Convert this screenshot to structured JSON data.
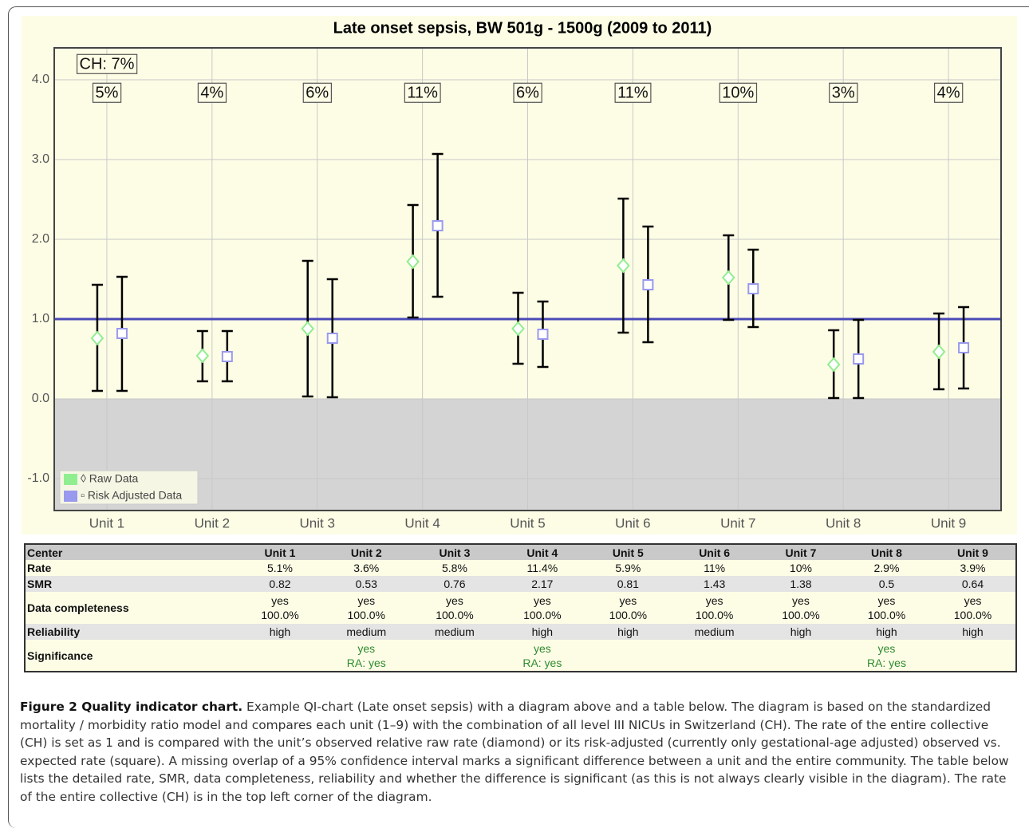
{
  "chart_data": {
    "type": "errorbar",
    "title": "Late onset sepsis, BW 501g - 1500g (2009 to 2011)",
    "categories": [
      "Unit 1",
      "Unit 2",
      "Unit 3",
      "Unit 4",
      "Unit 5",
      "Unit 6",
      "Unit 7",
      "Unit 8",
      "Unit 9"
    ],
    "series": [
      {
        "name": "◊ Raw Data",
        "color": "#90ee90",
        "marker": "diamond",
        "values": [
          0.76,
          0.54,
          0.88,
          1.72,
          0.88,
          1.67,
          1.52,
          0.43,
          0.59
        ],
        "lower": [
          0.1,
          0.22,
          0.03,
          1.02,
          0.44,
          0.83,
          0.99,
          0.01,
          0.12
        ],
        "upper": [
          1.43,
          0.85,
          1.73,
          2.43,
          1.33,
          2.51,
          2.05,
          0.86,
          1.07
        ]
      },
      {
        "name": "▫ Risk Adjusted Data",
        "color": "#9999ee",
        "marker": "square",
        "values": [
          0.82,
          0.53,
          0.76,
          2.17,
          0.81,
          1.43,
          1.38,
          0.5,
          0.64
        ],
        "lower": [
          0.1,
          0.22,
          0.02,
          1.28,
          0.4,
          0.71,
          0.9,
          0.01,
          0.13
        ],
        "upper": [
          1.53,
          0.85,
          1.5,
          3.07,
          1.22,
          2.16,
          1.87,
          0.99,
          1.15
        ]
      }
    ],
    "ylim": [
      -1.4,
      4.4
    ],
    "yticks": [
      {
        "value": 4,
        "label": "4.0"
      },
      {
        "value": 3,
        "label": "3.0"
      },
      {
        "value": 2,
        "label": "2.0"
      },
      {
        "value": 1,
        "label": "1.0"
      },
      {
        "value": 0,
        "label": "0.0"
      },
      {
        "value": -1,
        "label": "-1.0"
      }
    ],
    "reference_line": 1,
    "reference_color": "#4a4ab8",
    "shaded_below": 0,
    "overall_label": "CH: 7%",
    "unit_labels": [
      "5%",
      "4%",
      "6%",
      "11%",
      "6%",
      "11%",
      "10%",
      "3%",
      "4%"
    ],
    "legend": "lower left",
    "grid": true
  },
  "table": {
    "header": [
      "Center",
      "Unit 1",
      "Unit 2",
      "Unit 3",
      "Unit 4",
      "Unit 5",
      "Unit 6",
      "Unit 7",
      "Unit 8",
      "Unit 9"
    ],
    "rows": [
      {
        "label": "Rate",
        "cells": [
          [
            "5.1%"
          ],
          [
            "3.6%"
          ],
          [
            "5.8%"
          ],
          [
            "11.4%"
          ],
          [
            "5.9%"
          ],
          [
            "11%"
          ],
          [
            "10%"
          ],
          [
            "2.9%"
          ],
          [
            "3.9%"
          ]
        ]
      },
      {
        "label": "SMR",
        "cells": [
          [
            "0.82"
          ],
          [
            "0.53"
          ],
          [
            "0.76"
          ],
          [
            "2.17"
          ],
          [
            "0.81"
          ],
          [
            "1.43"
          ],
          [
            "1.38"
          ],
          [
            "0.5"
          ],
          [
            "0.64"
          ]
        ]
      },
      {
        "label": "Data completeness",
        "cells": [
          [
            "yes",
            "100.0%"
          ],
          [
            "yes",
            "100.0%"
          ],
          [
            "yes",
            "100.0%"
          ],
          [
            "yes",
            "100.0%"
          ],
          [
            "yes",
            "100.0%"
          ],
          [
            "yes",
            "100.0%"
          ],
          [
            "yes",
            "100.0%"
          ],
          [
            "yes",
            "100.0%"
          ],
          [
            "yes",
            "100.0%"
          ]
        ]
      },
      {
        "label": "Reliability",
        "cells": [
          [
            "high"
          ],
          [
            "medium"
          ],
          [
            "medium"
          ],
          [
            "high"
          ],
          [
            "high"
          ],
          [
            "medium"
          ],
          [
            "high"
          ],
          [
            "high"
          ],
          [
            "high"
          ]
        ]
      },
      {
        "label": "Significance",
        "cells": [
          [],
          [
            "yes",
            "RA: yes"
          ],
          [],
          [
            "yes",
            "RA: yes"
          ],
          [],
          [],
          [],
          [
            "yes",
            "RA: yes"
          ],
          []
        ]
      }
    ]
  },
  "caption": {
    "label": "Figure 2 Quality indicator chart.",
    "text": "Example QI-chart (Late onset sepsis) with a diagram above and a table below. The diagram is based on the standardized mortality / morbidity ratio model and compares each unit (1–9) with the combination of all level III NICUs in Switzerland (CH). The rate of the entire collective (CH) is set as 1 and is compared with the unit’s observed relative raw rate (diamond) or its risk-adjusted (currently only gestational-age adjusted) observed vs. expected rate (square). A missing overlap of a 95% confidence interval marks a significant difference between a unit and the entire community. The table below lists the detailed rate, SMR, data completeness, reliability and whether the difference is significant (as this is not always clearly visible in the diagram). The rate of the entire collective (CH) is in the top left corner of the diagram."
  }
}
